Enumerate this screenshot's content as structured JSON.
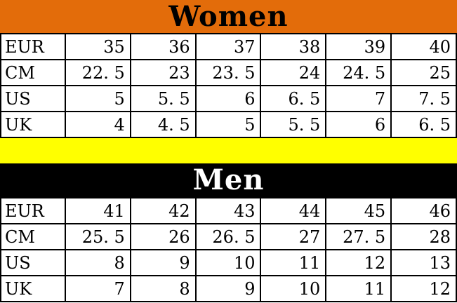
{
  "colors": {
    "women_header_bg": "#E36C0A",
    "women_header_text": "#000000",
    "men_header_bg": "#000000",
    "men_header_text": "#FFFFFF",
    "divider_bg": "#FFFF00",
    "grid_line": "#000000",
    "cell_bg": "#FFFFFF"
  },
  "women": {
    "title": "Women",
    "rows": [
      {
        "label": "EUR",
        "values": [
          "35",
          "36",
          "37",
          "38",
          "39",
          "40"
        ]
      },
      {
        "label": "CM",
        "values": [
          "22. 5",
          "23",
          "23. 5",
          "24",
          "24. 5",
          "25"
        ]
      },
      {
        "label": "US",
        "values": [
          "5",
          "5. 5",
          "6",
          "6. 5",
          "7",
          "7. 5"
        ]
      },
      {
        "label": "UK",
        "values": [
          "4",
          "4. 5",
          "5",
          "5. 5",
          "6",
          "6. 5"
        ]
      }
    ]
  },
  "men": {
    "title": "Men",
    "rows": [
      {
        "label": "EUR",
        "values": [
          "41",
          "42",
          "43",
          "44",
          "45",
          "46"
        ]
      },
      {
        "label": "CM",
        "values": [
          "25. 5",
          "26",
          "26. 5",
          "27",
          "27. 5",
          "28"
        ]
      },
      {
        "label": "US",
        "values": [
          "8",
          "9",
          "10",
          "11",
          "12",
          "13"
        ]
      },
      {
        "label": "UK",
        "values": [
          "7",
          "8",
          "9",
          "10",
          "11",
          "12"
        ]
      }
    ]
  },
  "chart_data": [
    {
      "type": "table",
      "title": "Women",
      "row_headers": [
        "EUR",
        "CM",
        "US",
        "UK"
      ],
      "rows": [
        [
          35,
          36,
          37,
          38,
          39,
          40
        ],
        [
          22.5,
          23,
          23.5,
          24,
          24.5,
          25
        ],
        [
          5,
          5.5,
          6,
          6.5,
          7,
          7.5
        ],
        [
          4,
          4.5,
          5,
          5.5,
          6,
          6.5
        ]
      ]
    },
    {
      "type": "table",
      "title": "Men",
      "row_headers": [
        "EUR",
        "CM",
        "US",
        "UK"
      ],
      "rows": [
        [
          41,
          42,
          43,
          44,
          45,
          46
        ],
        [
          25.5,
          26,
          26.5,
          27,
          27.5,
          28
        ],
        [
          8,
          9,
          10,
          11,
          12,
          13
        ],
        [
          7,
          8,
          9,
          10,
          11,
          12
        ]
      ]
    }
  ]
}
